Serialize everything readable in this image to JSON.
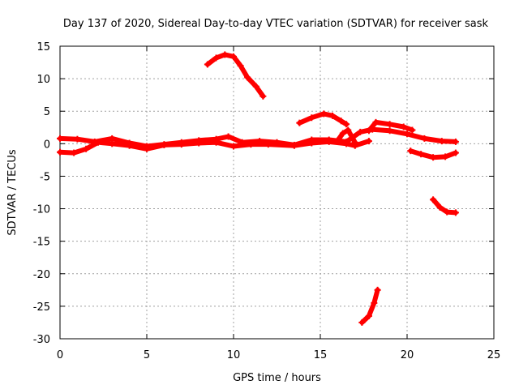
{
  "chart_data": {
    "type": "scatter",
    "title": "Day 137 of 2020, Sidereal Day-to-day VTEC variation (SDTVAR) for receiver sask",
    "xlabel": "GPS time / hours",
    "ylabel": "SDTVAR / TECUs",
    "xlim": [
      0,
      25
    ],
    "ylim": [
      -30,
      15
    ],
    "xticks": [
      0,
      5,
      10,
      15,
      20,
      25
    ],
    "yticks": [
      -30,
      -25,
      -20,
      -15,
      -10,
      -5,
      0,
      5,
      10,
      15
    ],
    "grid": true,
    "legend": "none",
    "marker": "plus",
    "color": "#ff0000",
    "series": [
      {
        "name": "trace-main-upper",
        "x": [
          0,
          1,
          2,
          3,
          4,
          5,
          6,
          7,
          8,
          9,
          9.7,
          10.5,
          11.5,
          12.5,
          13.5,
          14.5,
          15.5,
          16.5,
          17.3,
          18,
          19,
          20,
          21,
          22,
          22.8
        ],
        "y": [
          0.8,
          0.7,
          0.3,
          0.8,
          0.1,
          -0.4,
          -0.1,
          0.2,
          0.5,
          0.7,
          1.1,
          0.2,
          0.4,
          0.2,
          -0.2,
          0.6,
          0.6,
          0.3,
          1.8,
          2.2,
          2.0,
          1.5,
          0.8,
          0.4,
          0.3
        ]
      },
      {
        "name": "trace-main-lower",
        "x": [
          0,
          0.8,
          1.5,
          2.2,
          3,
          4,
          5,
          6,
          7,
          8,
          9,
          10,
          11,
          12,
          13.5,
          14.5,
          15.5,
          16.5,
          17,
          17.8
        ],
        "y": [
          -1.3,
          -1.4,
          -0.8,
          0.2,
          0.0,
          -0.3,
          -0.8,
          -0.2,
          -0.1,
          0.1,
          0.2,
          -0.4,
          -0.1,
          -0.1,
          -0.3,
          0.1,
          0.3,
          0.0,
          -0.3,
          0.4
        ]
      },
      {
        "name": "trace-upper-arc",
        "x": [
          8.5,
          9.0,
          9.5,
          10.0,
          10.4,
          10.8,
          11.3,
          11.7
        ],
        "y": [
          12.2,
          13.2,
          13.7,
          13.4,
          12.0,
          10.2,
          8.8,
          7.3
        ]
      },
      {
        "name": "trace-mid-arc",
        "x": [
          13.8,
          14.5,
          15.2,
          15.7,
          16.2,
          16.5
        ],
        "y": [
          3.2,
          4.0,
          4.6,
          4.3,
          3.5,
          3.0
        ]
      },
      {
        "name": "trace-rise-1",
        "x": [
          16.0,
          16.3,
          16.6,
          17.0
        ],
        "y": [
          0.5,
          1.6,
          2.1,
          0.2
        ]
      },
      {
        "name": "trace-rise-2",
        "x": [
          17.8,
          18.2,
          19.0,
          19.8,
          20.3
        ],
        "y": [
          2.0,
          3.3,
          3.0,
          2.6,
          2.1
        ]
      },
      {
        "name": "trace-dip-right",
        "x": [
          20.2,
          20.8,
          21.5,
          22.2,
          22.8
        ],
        "y": [
          -1.1,
          -1.6,
          -2.1,
          -2.0,
          -1.4
        ]
      },
      {
        "name": "trace-drop-right",
        "x": [
          21.5,
          21.9,
          22.3,
          22.8
        ],
        "y": [
          -8.6,
          -9.8,
          -10.5,
          -10.6
        ]
      },
      {
        "name": "trace-bottom",
        "x": [
          17.4,
          17.8,
          18.1,
          18.3
        ],
        "y": [
          -27.5,
          -26.5,
          -24.5,
          -22.5
        ]
      }
    ]
  }
}
